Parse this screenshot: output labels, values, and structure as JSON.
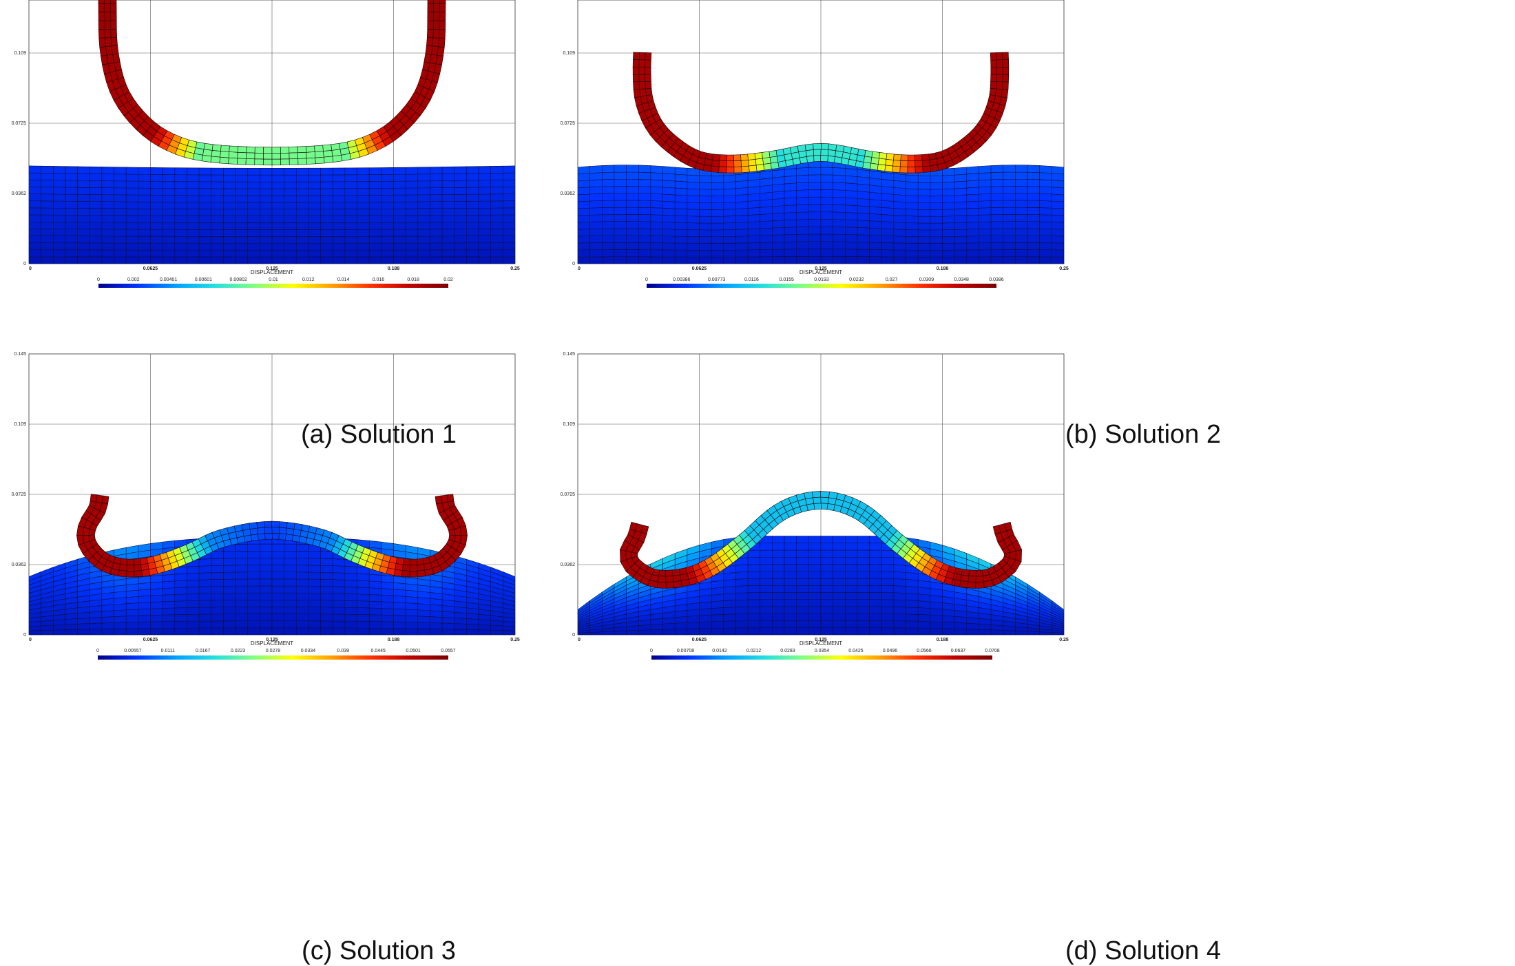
{
  "axes": {
    "yticks": [
      "0",
      "0.0362",
      "0.0725",
      "0.109",
      "0.145"
    ],
    "xticks": [
      "0",
      "0.0625",
      "0.125",
      "0.188",
      "0.25"
    ],
    "xlabel": "DISPLACEMENT"
  },
  "panels": [
    {
      "caption": "(a) Solution 1",
      "max_displacement": 0.02,
      "colorbar_ticks": [
        "0",
        "0.002",
        "0.00401",
        "0.00601",
        "0.00802",
        "0.01",
        "0.012",
        "0.014",
        "0.016",
        "0.018",
        "0.02"
      ],
      "show_top_ytick": false
    },
    {
      "caption": "(b) Solution 2",
      "max_displacement": 0.0386,
      "colorbar_ticks": [
        "0",
        "0.00386",
        "0.00773",
        "0.0116",
        "0.0155",
        "0.0193",
        "0.0232",
        "0.027",
        "0.0309",
        "0.0348",
        "0.0386"
      ],
      "show_top_ytick": false
    },
    {
      "caption": "(c) Solution 3",
      "max_displacement": 0.0557,
      "colorbar_ticks": [
        "0",
        "0.00557",
        "0.0111",
        "0.0167",
        "0.0223",
        "0.0278",
        "0.0334",
        "0.039",
        "0.0445",
        "0.0501",
        "0.0557"
      ],
      "show_top_ytick": true
    },
    {
      "caption": "(d) Solution 4",
      "max_displacement": 0.0708,
      "colorbar_ticks": [
        "0",
        "0.00708",
        "0.0142",
        "0.0212",
        "0.0283",
        "0.0354",
        "0.0425",
        "0.0496",
        "0.0566",
        "0.0637",
        "0.0708"
      ],
      "show_top_ytick": true
    }
  ],
  "colormap": [
    "#00008b",
    "#0033ff",
    "#00a0ff",
    "#22e0e0",
    "#80ff80",
    "#ffff00",
    "#ffa000",
    "#ff3000",
    "#c00000",
    "#7a0000"
  ]
}
